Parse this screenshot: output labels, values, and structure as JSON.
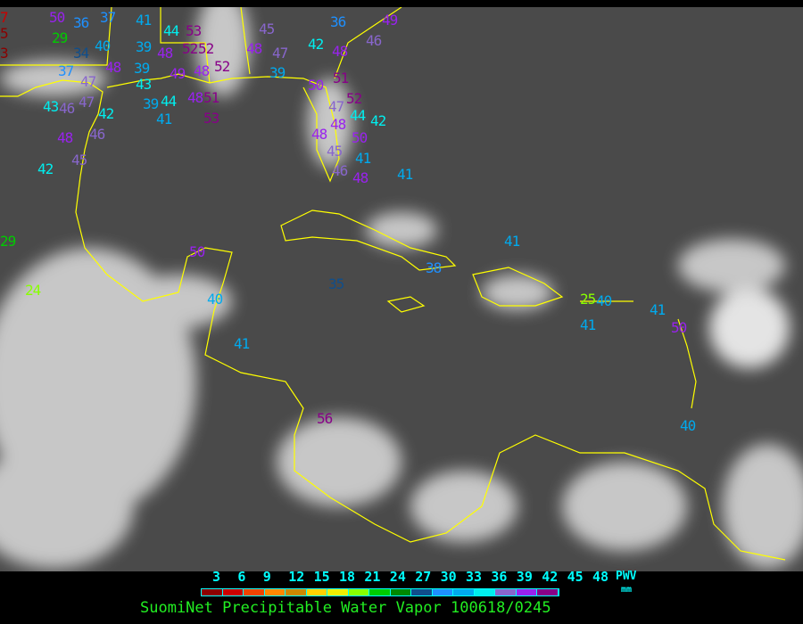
{
  "title": "SuomiNet Precipitable Water Vapor 100618/0245",
  "legend": {
    "unit_label": "PWV",
    "unit": "mm",
    "ticks": [
      "3",
      "6",
      "9",
      "12",
      "15",
      "18",
      "21",
      "24",
      "27",
      "30",
      "33",
      "36",
      "39",
      "42",
      "45",
      "48"
    ],
    "colors": [
      "#8b0000",
      "#cc0000",
      "#ee4400",
      "#ff8800",
      "#cc8800",
      "#ffd000",
      "#eeee00",
      "#88ff00",
      "#00cc00",
      "#008800",
      "#104e8b",
      "#1e90ff",
      "#00aaee",
      "#00eeee",
      "#8866cc",
      "#9922ee",
      "#880088"
    ]
  },
  "map": {
    "coastline_color": "#ffff00",
    "background": "GOES infrared satellite imagery, Gulf of Mexico and Caribbean"
  },
  "stations": [
    7,
    5,
    3,
    50,
    29,
    36,
    37,
    40,
    41,
    39,
    44,
    53,
    34,
    37,
    47,
    48,
    39,
    43,
    48,
    49,
    52,
    52,
    44,
    48,
    52,
    48,
    51,
    39,
    41,
    53,
    43,
    46,
    47,
    42,
    48,
    46,
    45,
    42,
    45,
    47,
    48,
    39,
    36,
    42,
    48,
    46,
    49,
    51,
    50,
    47,
    52,
    48,
    44,
    50,
    42,
    45,
    41,
    48,
    46,
    48,
    41,
    29,
    24,
    50,
    40,
    41,
    35,
    38,
    41,
    25,
    40,
    41,
    41,
    50,
    56,
    40
  ]
}
